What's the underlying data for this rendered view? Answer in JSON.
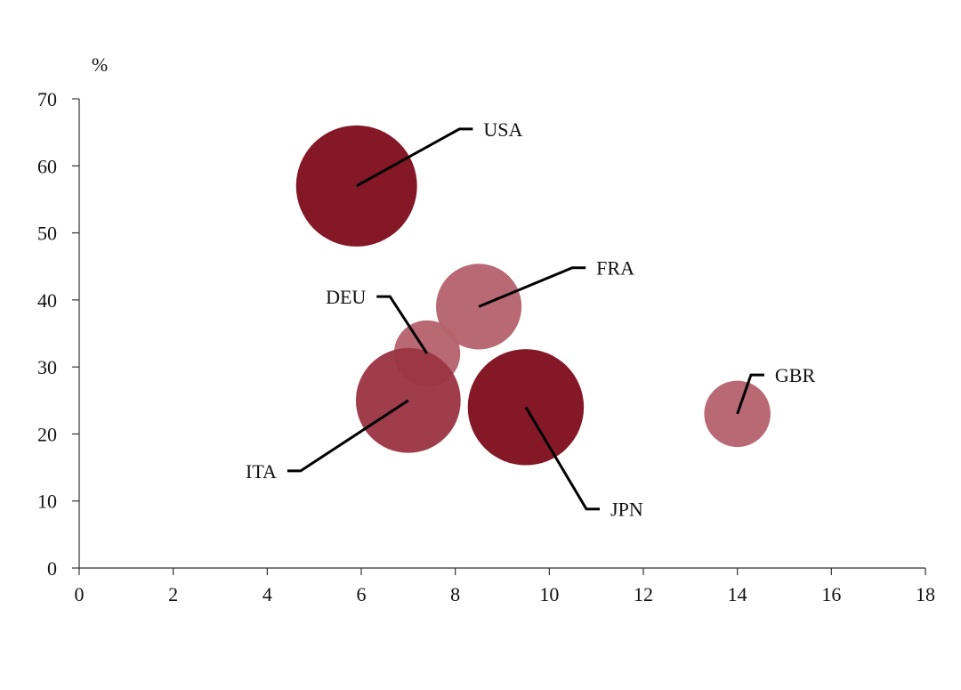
{
  "chart_data": {
    "type": "scatter",
    "subtype": "bubble",
    "title": "",
    "xlabel": "",
    "ylabel": "%",
    "xlim": [
      0,
      18
    ],
    "ylim": [
      0,
      70
    ],
    "x_ticks": [
      0,
      2,
      4,
      6,
      8,
      10,
      12,
      14,
      16,
      18
    ],
    "y_ticks": [
      0,
      10,
      20,
      30,
      40,
      50,
      60,
      70
    ],
    "grid": false,
    "colors": {
      "dark": "#7f0f1e",
      "medium": "#9c3545",
      "light": "#b5636d",
      "axis": "#333333",
      "leader": "#000000"
    },
    "points": [
      {
        "label": "USA",
        "x": 5.9,
        "y": 57,
        "size": 100,
        "shade": "dark",
        "label_x": 8.6,
        "label_y": 65.5
      },
      {
        "label": "FRA",
        "x": 8.5,
        "y": 39,
        "size": 50,
        "shade": "light",
        "label_x": 11.0,
        "label_y": 44.8
      },
      {
        "label": "DEU",
        "x": 7.4,
        "y": 32,
        "size": 30,
        "shade": "light",
        "label_x": 6.1,
        "label_y": 40.5
      },
      {
        "label": "ITA",
        "x": 7.0,
        "y": 25,
        "size": 75,
        "shade": "medium",
        "label_x": 4.2,
        "label_y": 14.5
      },
      {
        "label": "JPN",
        "x": 9.5,
        "y": 24,
        "size": 92,
        "shade": "dark",
        "label_x": 11.3,
        "label_y": 8.8
      },
      {
        "label": "GBR",
        "x": 14.0,
        "y": 23,
        "size": 30,
        "shade": "light",
        "label_x": 14.8,
        "label_y": 28.8
      }
    ]
  }
}
